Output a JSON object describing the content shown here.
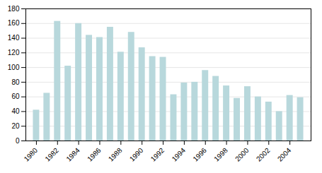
{
  "chart_data": {
    "type": "bar",
    "x": [
      1980,
      1981,
      1982,
      1983,
      1984,
      1985,
      1986,
      1987,
      1988,
      1989,
      1990,
      1991,
      1992,
      1993,
      1994,
      1995,
      1996,
      1997,
      1998,
      1999,
      2000,
      2001,
      2002,
      2003,
      2004,
      2005
    ],
    "values": [
      42,
      65,
      163,
      102,
      160,
      144,
      141,
      155,
      121,
      148,
      127,
      115,
      114,
      63,
      79,
      80,
      96,
      88,
      75,
      58,
      74,
      60,
      53,
      40,
      62,
      59
    ],
    "color": "#b8d8dc",
    "xlim": [
      1979,
      2006
    ],
    "xticks": [
      1980,
      1982,
      1984,
      1986,
      1988,
      1990,
      1992,
      1994,
      1996,
      1998,
      2000,
      2002,
      2004
    ],
    "ylim": [
      0,
      180
    ],
    "yticks": [
      0,
      20,
      40,
      60,
      80,
      100,
      120,
      140,
      160,
      180
    ],
    "grid": true
  }
}
